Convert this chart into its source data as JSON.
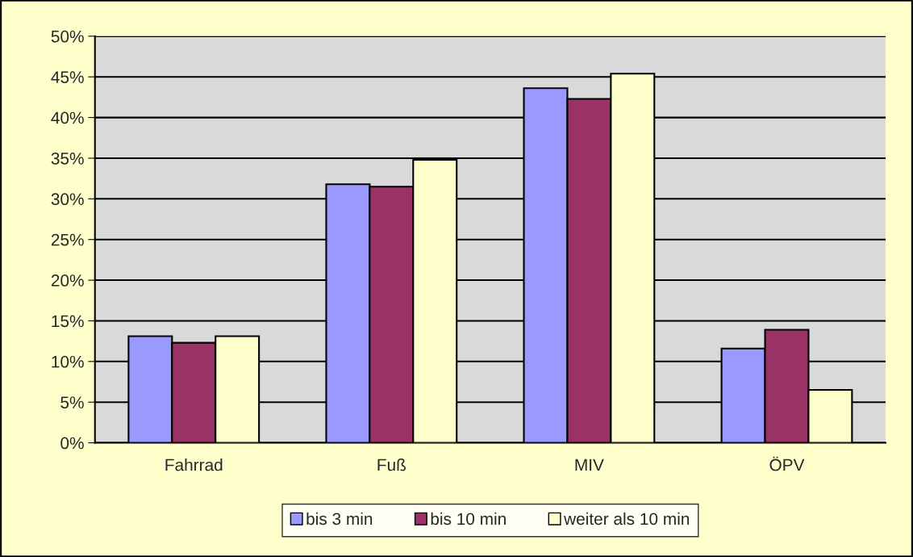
{
  "chart_data": {
    "type": "bar",
    "categories": [
      "Fahrrad",
      "Fuß",
      "MIV",
      "ÖPV"
    ],
    "series": [
      {
        "name": "bis 3 min",
        "color": "#9999ff",
        "values": [
          13.1,
          31.8,
          43.6,
          11.6
        ]
      },
      {
        "name": "bis 10 min",
        "color": "#993366",
        "values": [
          12.3,
          31.5,
          42.3,
          13.9
        ]
      },
      {
        "name": "weiter als 10 min",
        "color": "#ffffcc",
        "values": [
          13.1,
          34.8,
          45.4,
          6.5
        ]
      }
    ],
    "ylim": [
      0,
      50
    ],
    "yticks": [
      {
        "value": 0,
        "label": "0%"
      },
      {
        "value": 5,
        "label": "5%"
      },
      {
        "value": 10,
        "label": "10%"
      },
      {
        "value": 15,
        "label": "15%"
      },
      {
        "value": 20,
        "label": "20%"
      },
      {
        "value": 25,
        "label": "25%"
      },
      {
        "value": 30,
        "label": "30%"
      },
      {
        "value": 35,
        "label": "35%"
      },
      {
        "value": 40,
        "label": "40%"
      },
      {
        "value": 45,
        "label": "45%"
      },
      {
        "value": 50,
        "label": "50%"
      }
    ],
    "grid": "y",
    "legend": "bottom"
  }
}
